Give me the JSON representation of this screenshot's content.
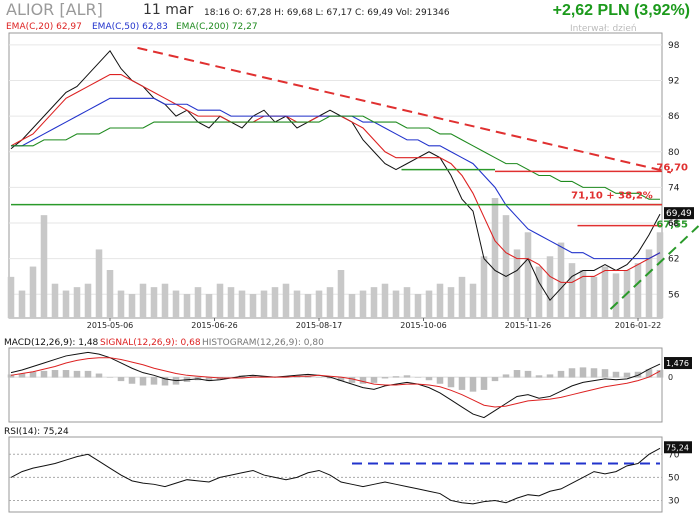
{
  "header": {
    "ticker": "ALIOR [ALR]",
    "date": "11 mar",
    "quote": "18:16  O: 67,28  H: 69,68  L: 67,17  C: 69,49  Vol: 291346",
    "change": "+2,62 PLN (3,92%)",
    "interval": "Interwał: dzień"
  },
  "legend": {
    "ema20": "EMA(C,20) 62,97",
    "ema50": "EMA(C,50) 62,83",
    "ema200": "EMA(C,200) 72,27",
    "macd": "MACD(12,26,9): 1,48",
    "signal": "SIGNAL(12,26,9): 0,68",
    "histogram": "HISTOGRAM(12,26,9): 0,80",
    "rsi": "RSI(14): 75,24"
  },
  "colors": {
    "ema20": "#dd2222",
    "ema50": "#2233cc",
    "ema200": "#1e8a1e",
    "resistance": "#e03030",
    "support": "#2a9a2a",
    "rsi_line": "#2233cc",
    "volume": "#c8c8c8",
    "price": "#111111"
  },
  "chart_data": [
    {
      "type": "line",
      "title": "",
      "series": [
        {
          "name": "ALIOR [ALR]",
          "values": [
            80.5,
            82,
            84,
            86,
            88,
            90,
            91,
            93,
            95,
            97,
            94,
            92,
            91,
            89,
            88,
            86,
            87,
            85,
            84,
            86,
            85,
            84,
            86,
            87,
            85,
            86,
            84,
            85,
            86,
            87,
            86,
            85,
            82,
            80,
            78,
            77,
            78,
            79,
            80,
            79,
            76,
            72,
            70,
            62,
            60,
            59,
            60,
            62,
            58,
            55,
            57,
            59,
            60,
            60,
            61,
            60,
            61,
            63,
            66,
            69.5
          ]
        },
        {
          "name": "EMA(C,20)",
          "values": [
            81,
            82,
            83,
            85,
            87,
            89,
            90,
            91,
            92,
            93,
            93,
            92,
            91,
            90,
            89,
            88,
            87,
            86,
            86,
            86,
            85,
            85,
            85,
            86,
            86,
            86,
            85,
            85,
            86,
            86,
            86,
            85,
            84,
            82,
            80,
            79,
            79,
            79,
            79,
            79,
            78,
            76,
            73,
            69,
            65,
            63,
            62,
            62,
            61,
            59,
            58,
            58,
            59,
            59,
            60,
            60,
            60,
            61,
            62,
            63
          ]
        },
        {
          "name": "EMA(C,50)",
          "values": [
            81,
            81,
            82,
            83,
            84,
            85,
            86,
            87,
            88,
            89,
            89,
            89,
            89,
            89,
            88,
            88,
            88,
            87,
            87,
            87,
            86,
            86,
            86,
            86,
            86,
            86,
            86,
            86,
            86,
            86,
            86,
            86,
            85,
            85,
            84,
            83,
            82,
            82,
            81,
            81,
            80,
            79,
            78,
            76,
            74,
            71,
            69,
            67,
            66,
            65,
            64,
            63,
            63,
            62,
            62,
            62,
            62,
            62,
            62,
            63
          ]
        },
        {
          "name": "EMA(C,200)",
          "values": [
            81,
            81,
            81,
            82,
            82,
            82,
            83,
            83,
            83,
            84,
            84,
            84,
            84,
            85,
            85,
            85,
            85,
            85,
            85,
            85,
            85,
            85,
            85,
            85,
            85,
            85,
            85,
            85,
            85,
            86,
            86,
            86,
            86,
            85,
            85,
            85,
            84,
            84,
            84,
            83,
            83,
            82,
            81,
            80,
            79,
            78,
            78,
            77,
            76,
            76,
            75,
            75,
            74,
            74,
            74,
            73,
            73,
            73,
            72,
            72
          ]
        }
      ],
      "x_tick_labels": [
        "2015-05-06",
        "2015-06-26",
        "2015-08-17",
        "2015-10-06",
        "2015-11-26",
        "2016-01-22"
      ],
      "x_tick_positions": [
        9,
        18.5,
        28,
        37.5,
        47,
        57
      ],
      "ylim": [
        52,
        100
      ],
      "y_ticks": [
        56,
        62,
        68,
        74,
        80,
        86,
        92,
        98
      ],
      "volume": [
        12,
        8,
        15,
        30,
        10,
        8,
        9,
        10,
        20,
        14,
        8,
        7,
        10,
        9,
        10,
        8,
        7,
        9,
        7,
        10,
        9,
        8,
        7,
        8,
        9,
        10,
        8,
        7,
        8,
        9,
        14,
        7,
        8,
        9,
        10,
        8,
        9,
        7,
        8,
        10,
        9,
        12,
        10,
        18,
        35,
        30,
        20,
        25,
        15,
        18,
        22,
        16,
        14,
        12,
        15,
        13,
        14,
        16,
        20,
        25
      ],
      "price_labels": [
        "69,49",
        "68"
      ],
      "annotations": [
        {
          "text": "76,70",
          "value": 76.7,
          "color": "#e03030"
        },
        {
          "text": "71,10 + 38,2%",
          "value": 71.1,
          "color": "#e03030"
        },
        {
          "text": "67,55",
          "value": 67.55,
          "color": "#2a9a2a"
        }
      ],
      "hlines": [
        {
          "value": 76.7,
          "x0": 44,
          "x1": 60,
          "color": "#e03030"
        },
        {
          "value": 71.1,
          "x0": 0,
          "x1": 60,
          "color": "#2a9a2a"
        },
        {
          "value": 71.1,
          "x0": 49,
          "x1": 60,
          "color": "#e03030"
        },
        {
          "value": 67.55,
          "x0": 51.5,
          "x1": 60,
          "color": "#e03030"
        },
        {
          "value": 77,
          "x0": 35.5,
          "x1": 44,
          "color": "#2a9a2a"
        }
      ],
      "trendlines": [
        {
          "from": [
            11.5,
            97.5
          ],
          "to": [
            60,
            76.5
          ],
          "color": "#e03030",
          "dashed": true
        },
        {
          "from": [
            54.5,
            53.5
          ],
          "to": [
            62.5,
            67.5
          ],
          "color": "#2a9a2a",
          "dashed": true
        }
      ]
    },
    {
      "type": "line",
      "title": "",
      "series": [
        {
          "name": "MACD",
          "values": [
            0.5,
            0.8,
            1.2,
            1.6,
            2.0,
            2.4,
            2.6,
            2.8,
            2.6,
            2.2,
            1.6,
            1.0,
            0.5,
            0.2,
            -0.2,
            -0.4,
            -0.3,
            -0.2,
            -0.4,
            -0.3,
            -0.1,
            0.1,
            0.2,
            0.1,
            0.0,
            0.1,
            0.2,
            0.3,
            0.2,
            0.0,
            -0.4,
            -0.8,
            -1.2,
            -1.4,
            -1.0,
            -0.8,
            -0.6,
            -0.8,
            -1.2,
            -1.8,
            -2.6,
            -3.4,
            -4.2,
            -4.6,
            -3.8,
            -3.0,
            -2.2,
            -2.0,
            -2.4,
            -2.2,
            -1.6,
            -1.0,
            -0.6,
            -0.4,
            -0.2,
            -0.3,
            -0.2,
            0.2,
            0.9,
            1.48
          ]
        },
        {
          "name": "SIGNAL",
          "values": [
            0.2,
            0.4,
            0.6,
            0.9,
            1.2,
            1.6,
            1.9,
            2.1,
            2.2,
            2.2,
            2.0,
            1.7,
            1.4,
            1.0,
            0.7,
            0.4,
            0.2,
            0.1,
            0.0,
            -0.1,
            -0.1,
            -0.1,
            0.0,
            0.0,
            0.0,
            0.0,
            0.1,
            0.1,
            0.2,
            0.1,
            0.0,
            -0.2,
            -0.5,
            -0.8,
            -0.9,
            -0.9,
            -0.8,
            -0.8,
            -0.9,
            -1.1,
            -1.5,
            -2.0,
            -2.6,
            -3.2,
            -3.4,
            -3.3,
            -3.0,
            -2.7,
            -2.6,
            -2.5,
            -2.3,
            -2.0,
            -1.7,
            -1.4,
            -1.1,
            -0.9,
            -0.7,
            -0.4,
            0.0,
            0.68
          ]
        }
      ],
      "value_label": "1,476",
      "zero_label": "0"
    },
    {
      "type": "line",
      "title": "",
      "series": [
        {
          "name": "RSI(14)",
          "values": [
            50,
            55,
            58,
            60,
            62,
            65,
            68,
            70,
            64,
            58,
            52,
            47,
            45,
            44,
            42,
            45,
            48,
            47,
            46,
            50,
            52,
            54,
            56,
            52,
            50,
            48,
            50,
            54,
            56,
            52,
            46,
            44,
            42,
            44,
            46,
            44,
            42,
            40,
            38,
            36,
            30,
            28,
            27,
            29,
            30,
            28,
            32,
            35,
            34,
            38,
            40,
            45,
            50,
            55,
            53,
            55,
            60,
            62,
            70,
            75.24
          ]
        }
      ],
      "y_ticks": [
        30,
        50,
        70
      ],
      "ylim": [
        20,
        85
      ],
      "value_label": "75,24",
      "reference_line": 62
    }
  ]
}
